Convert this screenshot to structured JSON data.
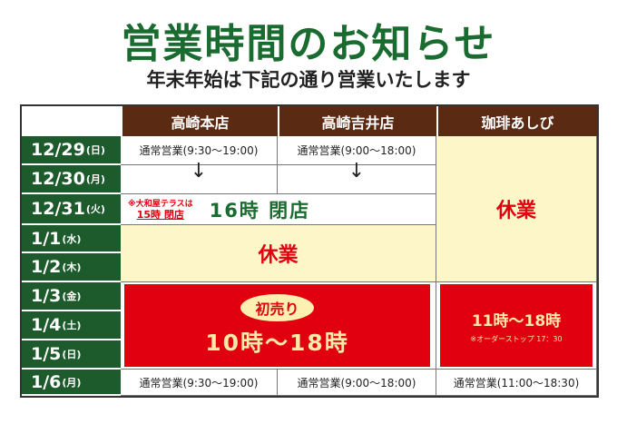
{
  "title": "営業時間のお知らせ",
  "subtitle": "年末年始は下記の通り営業いたします",
  "headers": [
    "高崎本店",
    "高崎吉井店",
    "珈琲あしび"
  ],
  "dates": [
    {
      "date": "12/29",
      "day": "(日)"
    },
    {
      "date": "12/30",
      "day": "(月)"
    },
    {
      "date": "12/31",
      "day": "(火)"
    },
    {
      "date": "1/1",
      "day": "(水)"
    },
    {
      "date": "1/2",
      "day": "(木)"
    },
    {
      "date": "1/3",
      "day": "(金)"
    },
    {
      "date": "1/4",
      "day": "(土)"
    },
    {
      "date": "1/5",
      "day": "(日)"
    },
    {
      "date": "1/6",
      "day": "(月)"
    }
  ],
  "cells": {
    "honten_normal": "通常営業(9:30〜19:00)",
    "yoshii_normal": "通常営業(9:00〜18:00)",
    "ashibi_normal": "通常営業(11:00〜18:30)",
    "arrow": "↓",
    "dec31_note_line1": "※大和屋テラスは",
    "dec31_note_line2": "15時 閉店",
    "dec31_close": "16時 閉店",
    "closed": "休業",
    "hatsuuri_badge": "初売り",
    "hatsuuri_hours": "10時〜18時",
    "ashibi_hours": "11時〜18時",
    "ashibi_note": "※オーダーストップ 17：30"
  },
  "colors": {
    "green": "#1d5a2c",
    "brown": "#5b2a13",
    "red": "#e1000f",
    "yellow": "#fdf6c9"
  }
}
